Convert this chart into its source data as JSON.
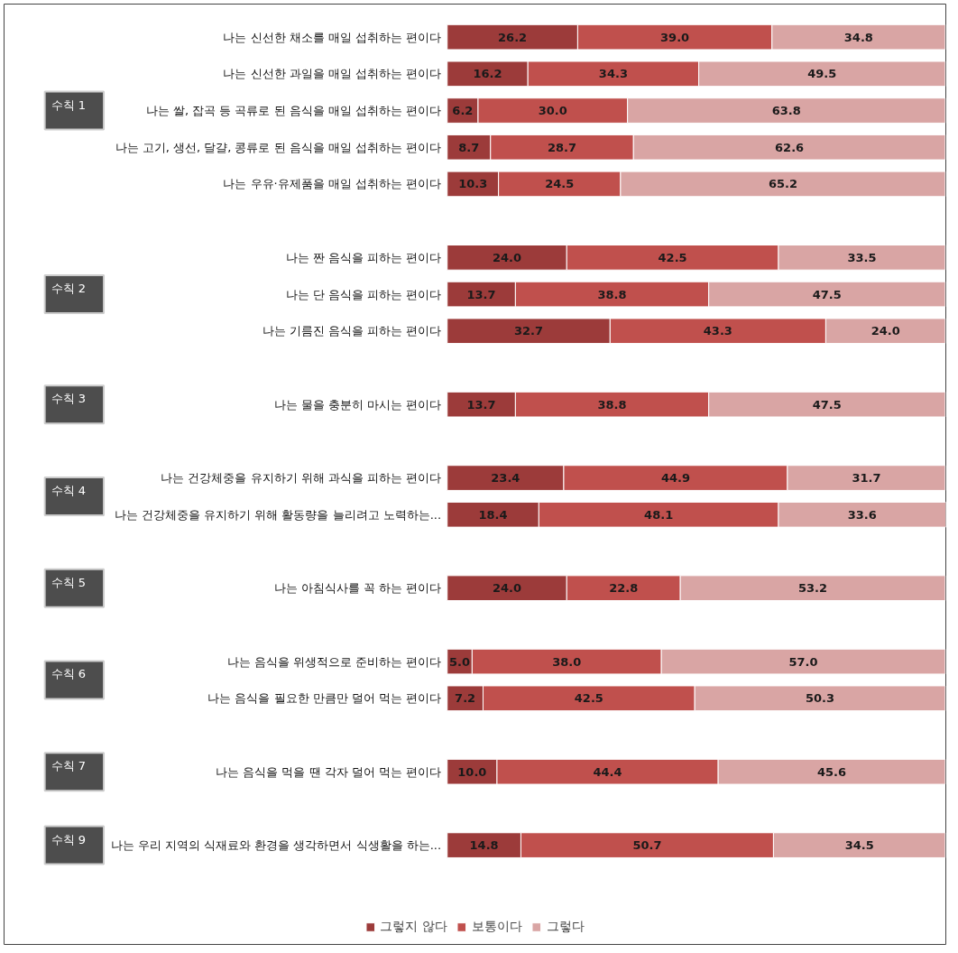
{
  "chart_data": {
    "type": "bar",
    "orientation": "horizontal",
    "stacked": true,
    "legend": "bottom",
    "grid": false,
    "categories": [
      "나는 신선한 채소를 매일 섭취하는 편이다",
      "나는 신선한 과일을 매일 섭취하는 편이다",
      "나는 쌀, 잡곡 등 곡류로 된 음식을 매일 섭취하는 편이다",
      "나는 고기, 생선, 달걀, 콩류로 된 음식을 매일 섭취하는 편이다",
      "나는 우유·유제품을 매일 섭취하는 편이다",
      null,
      "나는 짠 음식을 피하는 편이다",
      "나는 단 음식을 피하는 편이다",
      "나는 기름진 음식을 피하는 편이다",
      null,
      "나는 물을 충분히 마시는 편이다",
      null,
      "나는 건강체중을 유지하기 위해 과식을 피하는 편이다",
      "나는 건강체중을 유지하기 위해 활동량을 늘리려고 노력하는...",
      null,
      "나는 아침식사를 꼭 하는 편이다",
      null,
      "나는 음식을 위생적으로 준비하는 편이다",
      "나는 음식을 필요한 만큼만 덜어 먹는 편이다",
      null,
      "나는 음식을 먹을 땐 각자 덜어 먹는 편이다",
      null,
      "나는 우리 지역의 식재료와 환경을 생각하면서 식생활을 하는..."
    ],
    "series": [
      {
        "name": "그렇지 않다",
        "color": "#9c3b3a",
        "values": [
          26.2,
          16.2,
          6.2,
          8.7,
          10.3,
          null,
          24.0,
          13.7,
          32.7,
          null,
          13.7,
          null,
          23.4,
          18.4,
          null,
          24.0,
          null,
          5.0,
          7.2,
          null,
          10.0,
          null,
          14.8
        ],
        "value_labels": [
          "26.2",
          "16.2",
          "6.2",
          "8.7",
          "10.3",
          null,
          "24.0",
          "13.7",
          "32.7",
          null,
          "13.7",
          null,
          "23.4",
          "18.4",
          null,
          "24.0",
          null,
          "5.0",
          "7.2",
          null,
          "10.0",
          null,
          "14.8"
        ]
      },
      {
        "name": "보통이다",
        "color": "#c0504d",
        "values": [
          39.0,
          34.3,
          30.0,
          28.7,
          24.5,
          null,
          42.5,
          38.8,
          43.3,
          null,
          38.8,
          null,
          44.9,
          48.1,
          null,
          22.8,
          null,
          38.0,
          42.5,
          null,
          44.4,
          null,
          50.7
        ],
        "value_labels": [
          "39.0",
          "34.3",
          "30.0",
          "28.7",
          "24.5",
          null,
          "42.5",
          "38.8",
          "43.3",
          null,
          "38.8",
          null,
          "44.9",
          "48.1",
          null,
          "22.8",
          null,
          "38.0",
          "42.5",
          null,
          "44.4",
          null,
          "50.7"
        ]
      },
      {
        "name": "그렇다",
        "color": "#d9a5a4",
        "values": [
          34.8,
          49.5,
          63.8,
          62.6,
          65.2,
          null,
          33.5,
          47.5,
          24.0,
          null,
          47.5,
          null,
          31.7,
          33.6,
          null,
          53.2,
          null,
          57.0,
          50.3,
          null,
          45.6,
          null,
          34.5
        ],
        "value_labels": [
          "34.8",
          "49.5",
          "63.8",
          "62.6",
          "65.2",
          null,
          "33.5",
          "47.5",
          "24.0",
          null,
          "47.5",
          null,
          "31.7",
          "33.6",
          null,
          "53.2",
          null,
          "57.0",
          "50.3",
          null,
          "45.6",
          null,
          "34.5"
        ]
      }
    ],
    "annotations": [
      "수칙 1",
      "수칙 2",
      "수칙 3",
      "수칙 4",
      "수칙 5",
      "수칙 6",
      "수칙 7",
      "수칙 9"
    ]
  }
}
